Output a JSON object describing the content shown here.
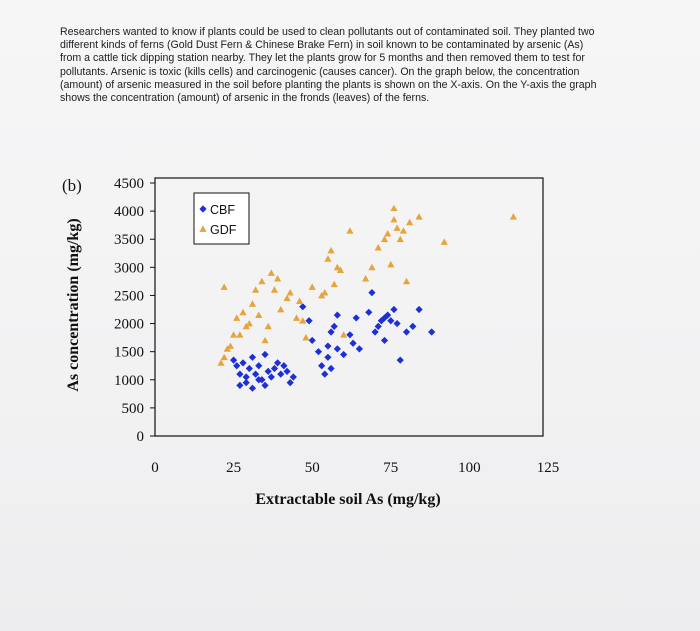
{
  "question_text": "Researchers wanted to know if plants could be used to clean pollutants out of contaminated soil. They planted two different kinds of ferns (Gold Dust Fern & Chinese Brake Fern) in soil known to be contaminated by arsenic (As) from a cattle tick dipping station nearby. They let the plants grow for 5 months and then removed them to test for pollutants. Arsenic is toxic (kills cells) and carcinogenic (causes cancer). On the graph below, the concentration (amount) of arsenic measured in the soil before planting the plants is shown on the X-axis. On the Y-axis the graph shows the concentration (amount) of arsenic in the fronds (leaves) of the ferns.",
  "panel_label": "(b)",
  "colors": {
    "CBF": "#1d2fd6",
    "GDF": "#e8a33a"
  },
  "chart_data": {
    "type": "scatter",
    "xlabel": "Extractable soil As (mg/kg)",
    "ylabel": "As concentration (mg/kg)",
    "xlim": [
      0,
      125
    ],
    "ylim": [
      0,
      4500
    ],
    "xticks": [
      "0",
      "25",
      "50",
      "75",
      "100",
      "125"
    ],
    "yticks": [
      "0",
      "500",
      "1000",
      "1500",
      "2000",
      "2500",
      "3000",
      "3500",
      "4000",
      "4500"
    ],
    "legend_position": "top-left",
    "series": [
      {
        "name": "CBF",
        "marker": "diamond",
        "points": [
          [
            25,
            1350
          ],
          [
            26,
            1250
          ],
          [
            27,
            1100
          ],
          [
            28,
            1300
          ],
          [
            29,
            1050
          ],
          [
            30,
            1200
          ],
          [
            31,
            1400
          ],
          [
            32,
            1100
          ],
          [
            33,
            1250
          ],
          [
            34,
            1000
          ],
          [
            35,
            1450
          ],
          [
            36,
            1150
          ],
          [
            27,
            900
          ],
          [
            29,
            950
          ],
          [
            31,
            850
          ],
          [
            33,
            1000
          ],
          [
            35,
            900
          ],
          [
            37,
            1050
          ],
          [
            38,
            1200
          ],
          [
            39,
            1300
          ],
          [
            40,
            1100
          ],
          [
            41,
            1250
          ],
          [
            42,
            1150
          ],
          [
            43,
            950
          ],
          [
            44,
            1050
          ],
          [
            47,
            2300
          ],
          [
            49,
            2050
          ],
          [
            50,
            1700
          ],
          [
            52,
            1500
          ],
          [
            53,
            1250
          ],
          [
            54,
            1100
          ],
          [
            55,
            1400
          ],
          [
            56,
            1200
          ],
          [
            55,
            1600
          ],
          [
            56,
            1850
          ],
          [
            57,
            1950
          ],
          [
            58,
            2150
          ],
          [
            58,
            1550
          ],
          [
            60,
            1450
          ],
          [
            62,
            1800
          ],
          [
            63,
            1650
          ],
          [
            64,
            2100
          ],
          [
            65,
            1550
          ],
          [
            68,
            2200
          ],
          [
            69,
            2550
          ],
          [
            70,
            1850
          ],
          [
            71,
            1950
          ],
          [
            72,
            2050
          ],
          [
            73,
            2100
          ],
          [
            73,
            1700
          ],
          [
            74,
            2150
          ],
          [
            75,
            2050
          ],
          [
            76,
            2250
          ],
          [
            77,
            2000
          ],
          [
            78,
            1350
          ],
          [
            80,
            1850
          ],
          [
            82,
            1950
          ],
          [
            84,
            2250
          ],
          [
            88,
            1850
          ]
        ]
      },
      {
        "name": "GDF",
        "marker": "triangle",
        "points": [
          [
            21,
            1300
          ],
          [
            22,
            1400
          ],
          [
            23,
            1550
          ],
          [
            24,
            1600
          ],
          [
            25,
            1800
          ],
          [
            26,
            2100
          ],
          [
            27,
            1800
          ],
          [
            28,
            2200
          ],
          [
            29,
            1950
          ],
          [
            30,
            2000
          ],
          [
            31,
            2350
          ],
          [
            32,
            2600
          ],
          [
            33,
            2150
          ],
          [
            22,
            2650
          ],
          [
            34,
            2750
          ],
          [
            35,
            1700
          ],
          [
            36,
            1950
          ],
          [
            37,
            2900
          ],
          [
            38,
            2600
          ],
          [
            39,
            2800
          ],
          [
            40,
            2250
          ],
          [
            42,
            2450
          ],
          [
            43,
            2550
          ],
          [
            45,
            2100
          ],
          [
            46,
            2400
          ],
          [
            47,
            2050
          ],
          [
            48,
            1750
          ],
          [
            50,
            2650
          ],
          [
            53,
            2500
          ],
          [
            54,
            2550
          ],
          [
            55,
            3150
          ],
          [
            56,
            3300
          ],
          [
            57,
            2700
          ],
          [
            58,
            3000
          ],
          [
            59,
            2950
          ],
          [
            60,
            1800
          ],
          [
            62,
            3650
          ],
          [
            67,
            2800
          ],
          [
            69,
            3000
          ],
          [
            71,
            3350
          ],
          [
            73,
            3500
          ],
          [
            74,
            3600
          ],
          [
            75,
            3050
          ],
          [
            76,
            3850
          ],
          [
            76,
            4050
          ],
          [
            77,
            3700
          ],
          [
            78,
            3500
          ],
          [
            79,
            3650
          ],
          [
            80,
            2750
          ],
          [
            81,
            3800
          ],
          [
            84,
            3900
          ],
          [
            92,
            3450
          ],
          [
            114,
            3900
          ]
        ]
      }
    ]
  }
}
